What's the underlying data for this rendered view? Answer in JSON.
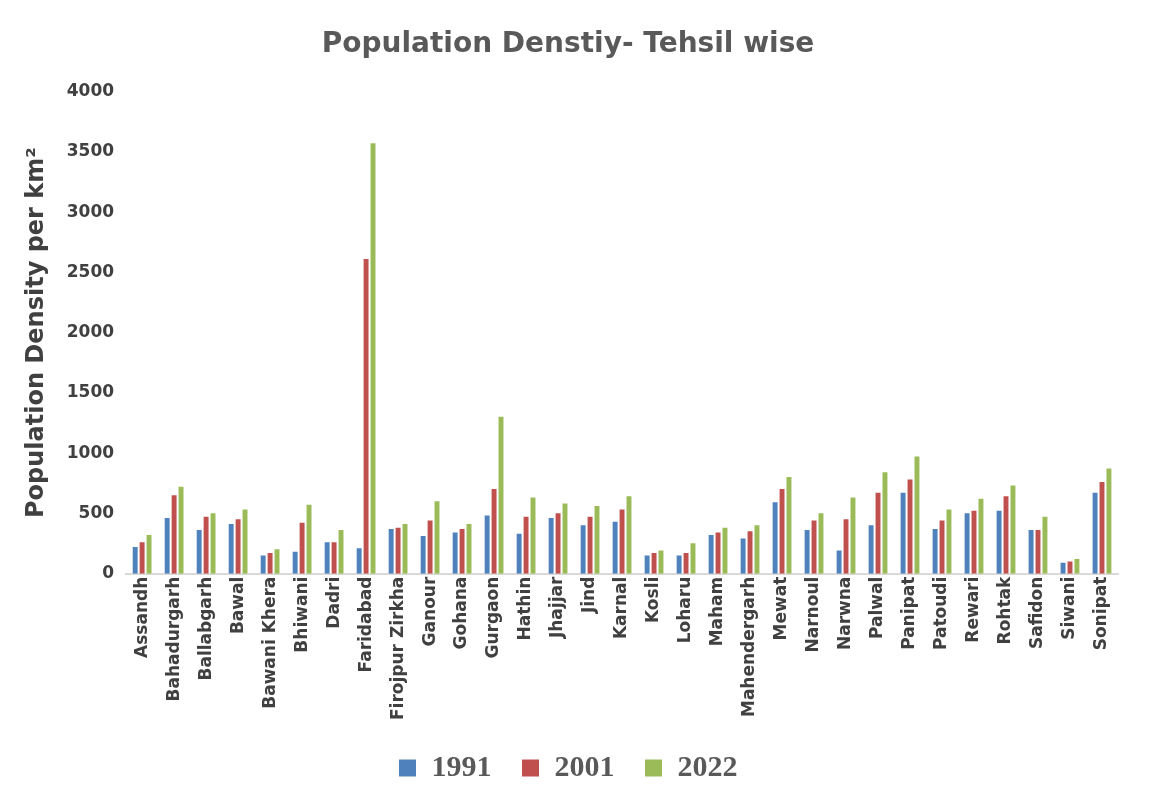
{
  "chart_data": {
    "type": "bar",
    "title": "Population Denstiy- Tehsil wise",
    "ylabel": "Population Density per km²",
    "categories": [
      "Assandh",
      "Bahadurgarh",
      "Ballabgarh",
      "Bawal",
      "Bawani Khera",
      "Bhiwani",
      "Dadri",
      "Faridabad",
      "Firojpur Zirkha",
      "Ganour",
      "Gohana",
      "Gurgaon",
      "Hathin",
      "Jhajjar",
      "Jind",
      "Karnal",
      "Kosli",
      "Loharu",
      "Maham",
      "Mahendergarh",
      "Mewat",
      "Narnoul",
      "Narwna",
      "Palwal",
      "Panipat",
      "Patoudi",
      "Rewari",
      "Rohtak",
      "Safidon",
      "Siwani",
      "Sonipat"
    ],
    "series": [
      {
        "name": "1991",
        "color": "#4f81bd",
        "values": [
          230,
          470,
          370,
          420,
          160,
          190,
          270,
          220,
          380,
          320,
          350,
          490,
          340,
          470,
          410,
          440,
          160,
          160,
          330,
          300,
          600,
          370,
          200,
          410,
          680,
          380,
          510,
          530,
          370,
          100,
          680
        ]
      },
      {
        "name": "2001",
        "color": "#c0504d",
        "values": [
          270,
          660,
          480,
          460,
          180,
          430,
          270,
          2620,
          390,
          450,
          380,
          710,
          480,
          510,
          480,
          540,
          180,
          180,
          350,
          360,
          710,
          450,
          460,
          680,
          790,
          450,
          530,
          650,
          370,
          110,
          770
        ]
      },
      {
        "name": "2022",
        "color": "#9bbb59",
        "values": [
          330,
          730,
          510,
          540,
          210,
          580,
          370,
          3580,
          420,
          610,
          420,
          1310,
          640,
          590,
          570,
          650,
          200,
          260,
          390,
          410,
          810,
          510,
          640,
          850,
          980,
          540,
          630,
          740,
          480,
          130,
          880
        ]
      }
    ],
    "ylim": [
      0,
      4000
    ],
    "yticks": [
      0,
      500,
      1000,
      1500,
      2000,
      2500,
      3000,
      3500,
      4000
    ],
    "grid": false,
    "legend": "bottom"
  }
}
